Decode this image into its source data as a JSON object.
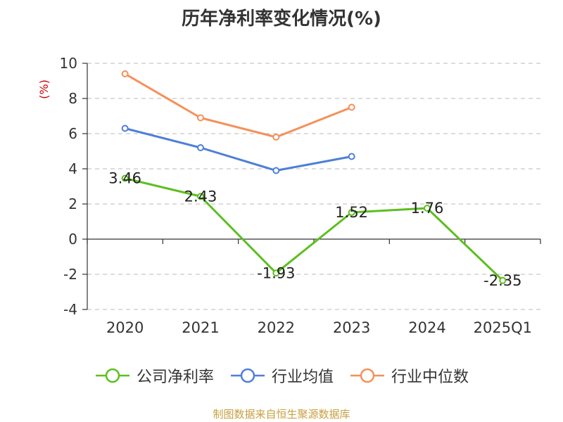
{
  "chart_data": {
    "type": "line",
    "title": "历年净利率变化情况(%)",
    "ylabel": "(%)",
    "categories": [
      "2020",
      "2021",
      "2022",
      "2023",
      "2024",
      "2025Q1"
    ],
    "ylim": [
      -4,
      10
    ],
    "yticks": [
      "10",
      "8",
      "6",
      "4",
      "2",
      "0",
      "-2",
      "-4"
    ],
    "grid": true,
    "legend_position": "bottom",
    "series": [
      {
        "name": "公司净利率",
        "color": "#5cbf1e",
        "values": [
          3.46,
          2.43,
          -1.93,
          1.52,
          1.76,
          -2.35
        ],
        "labels": [
          "3.46",
          "2.43",
          "-1.93",
          "1.52",
          "1.76",
          "-2.35"
        ]
      },
      {
        "name": "行业均值",
        "color": "#4e7fd9",
        "values": [
          6.3,
          5.2,
          3.9,
          4.7,
          null,
          null
        ]
      },
      {
        "name": "行业中位数",
        "color": "#f5905a",
        "values": [
          9.4,
          6.9,
          5.8,
          7.5,
          null,
          null
        ]
      }
    ]
  },
  "source": "制图数据来自恒生聚源数据库"
}
